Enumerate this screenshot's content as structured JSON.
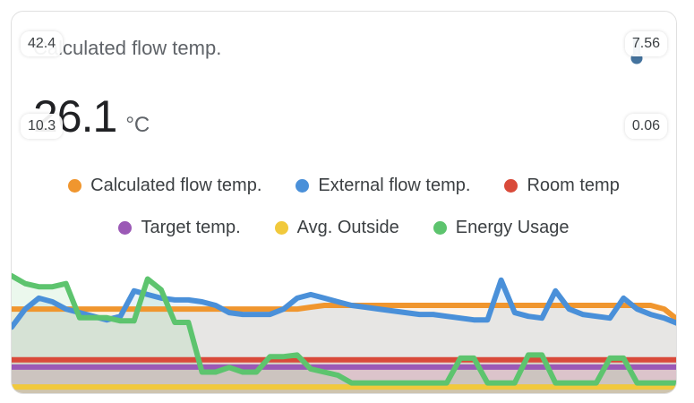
{
  "card": {
    "title": "Calculated flow temp.",
    "icon": "thermometer-icon",
    "value": "26.1",
    "unit": "°C"
  },
  "legend": [
    {
      "label": "Calculated flow temp.",
      "color": "#f0962e"
    },
    {
      "label": "External flow temp.",
      "color": "#4a90d9"
    },
    {
      "label": "Room temp",
      "color": "#d94a3a"
    },
    {
      "label": "Target temp.",
      "color": "#9b59b6"
    },
    {
      "label": "Avg. Outside",
      "color": "#f1c93c"
    },
    {
      "label": "Energy Usage",
      "color": "#5dc46e"
    }
  ],
  "axis": {
    "left_max": "42.4",
    "left_min": "10.3",
    "right_max": "7.56",
    "right_min": "0.06"
  },
  "chart_data": {
    "type": "line",
    "y_left_range": [
      10.3,
      42.4
    ],
    "y_right_range": [
      0.06,
      7.56
    ],
    "series": [
      {
        "name": "Calculated flow temp.",
        "axis": "left",
        "values": [
          33,
          33,
          33,
          33,
          33,
          33,
          33,
          33,
          33,
          33,
          33,
          33,
          33,
          33,
          33,
          33,
          33,
          33,
          33,
          33,
          33,
          33,
          33.5,
          34,
          34,
          34,
          34,
          34,
          34,
          34,
          34,
          34,
          34,
          34,
          34,
          34,
          34,
          34,
          34,
          34,
          34,
          34,
          34,
          34,
          34,
          34,
          34,
          34,
          33,
          30
        ]
      },
      {
        "name": "External flow temp.",
        "axis": "left",
        "values": [
          28,
          33,
          36,
          35,
          33,
          32,
          31,
          30,
          31,
          38,
          37,
          36,
          35.5,
          35.5,
          35,
          34,
          32,
          31.5,
          31.5,
          31.5,
          33,
          36,
          37,
          36,
          35,
          34,
          33.5,
          33,
          32.5,
          32,
          31.5,
          31.5,
          31,
          30.5,
          30,
          30,
          41,
          32,
          31,
          30.5,
          38,
          33,
          31.5,
          31,
          30.5,
          36,
          33,
          31.5,
          30.5,
          29
        ]
      },
      {
        "name": "Room temp",
        "axis": "left",
        "values": [
          19,
          19,
          19,
          19,
          19,
          19,
          19,
          19,
          19,
          19,
          19,
          19,
          19,
          19,
          19,
          19,
          19,
          19,
          19,
          19,
          19,
          19,
          19,
          19,
          19,
          19,
          19,
          19,
          19,
          19,
          19,
          19,
          19,
          19,
          19,
          19,
          19,
          19,
          19,
          19,
          19,
          19,
          19,
          19,
          19,
          19,
          19,
          19,
          19,
          19
        ]
      },
      {
        "name": "Target temp.",
        "axis": "left",
        "values": [
          17,
          17,
          17,
          17,
          17,
          17,
          17,
          17,
          17,
          17,
          17,
          17,
          17,
          17,
          17,
          17,
          17,
          17,
          17,
          17,
          17,
          17,
          17,
          17,
          17,
          17,
          17,
          17,
          17,
          17,
          17,
          17,
          17,
          17,
          17,
          17,
          17,
          17,
          17,
          17,
          17,
          17,
          17,
          17,
          17,
          17,
          17,
          17,
          17,
          17
        ]
      },
      {
        "name": "Avg. Outside",
        "axis": "left",
        "values": [
          11.5,
          11.5,
          11.5,
          11.5,
          11.5,
          11.5,
          11.5,
          11.5,
          11.5,
          11.5,
          11.5,
          11.5,
          11.5,
          11.5,
          11.5,
          11.5,
          11.5,
          11.5,
          11.5,
          11.5,
          11.5,
          11.5,
          11.5,
          11.5,
          11.5,
          11.5,
          11.5,
          11.5,
          11.5,
          11.5,
          11.5,
          11.5,
          11.5,
          11.5,
          11.5,
          11.5,
          11.5,
          11.5,
          11.5,
          11.5,
          11.5,
          11.5,
          11.5,
          11.5,
          11.5,
          11.5,
          11.5,
          11.5,
          11.5,
          11.5
        ]
      },
      {
        "name": "Energy Usage",
        "axis": "right",
        "values": [
          7.5,
          7.0,
          6.8,
          6.8,
          7.0,
          4.8,
          4.8,
          4.8,
          4.6,
          4.6,
          7.3,
          6.6,
          4.5,
          4.5,
          1.3,
          1.3,
          1.6,
          1.3,
          1.3,
          2.3,
          2.3,
          2.4,
          1.5,
          1.3,
          1.1,
          0.6,
          0.6,
          0.6,
          0.6,
          0.6,
          0.6,
          0.6,
          0.6,
          2.2,
          2.2,
          0.6,
          0.6,
          0.6,
          2.4,
          2.4,
          0.6,
          0.6,
          0.6,
          0.6,
          2.2,
          2.2,
          0.6,
          0.6,
          0.6,
          0.6
        ]
      }
    ],
    "grid": false,
    "legend_position": "top"
  }
}
